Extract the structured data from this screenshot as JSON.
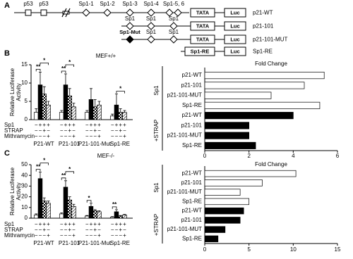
{
  "panel_labels": [
    "A",
    "B",
    "C"
  ],
  "diagram": {
    "constructs": [
      {
        "name": "p21-WT",
        "sites": [
          "p53",
          "p53",
          "Sp1-1",
          "Sp1-2",
          "Sp1-3",
          "Sp1-4",
          "Sp1-5, 6"
        ],
        "boxes": [
          "TATA",
          "Luc"
        ]
      },
      {
        "name": "p21-101",
        "sites": [
          "Sp1",
          "Sp1",
          "Sp1"
        ],
        "boxes": [
          "TATA",
          "Luc"
        ]
      },
      {
        "name": "p21-101-MUT",
        "sites": [
          "Sp1-Mut",
          "Sp1",
          "Sp1"
        ],
        "boxes": [
          "TATA",
          "Luc"
        ]
      },
      {
        "name": "Sp1-RE",
        "boxes": [
          "Sp1-RE",
          "Luc"
        ]
      }
    ]
  },
  "chart_data": [
    {
      "type": "grouped_bar",
      "subtitle": "MEF+/+",
      "ylabel": [
        "Relative Luciferase",
        "Activity"
      ],
      "categories": [
        "P21-WT",
        "P21-101",
        "P21-101-Mut",
        "Sp1-RE"
      ],
      "series": [
        {
          "color": "#ffffff",
          "pattern": "none",
          "values": [
            2,
            2,
            2,
            1
          ],
          "errors": [
            1,
            0.5,
            0.5,
            0.5
          ]
        },
        {
          "color": "#000000",
          "pattern": "none",
          "values": [
            9.5,
            9.5,
            5.5,
            4
          ],
          "errors": [
            3.5,
            3,
            3,
            3
          ]
        },
        {
          "color": "#000000",
          "pattern": "checker",
          "values": [
            7,
            6.5,
            3.5,
            2
          ],
          "errors": [
            2,
            2,
            2,
            1
          ]
        },
        {
          "color": "#000000",
          "pattern": "hatch",
          "values": [
            4,
            3.5,
            4,
            2
          ],
          "errors": [
            1,
            1,
            1,
            0.5
          ]
        }
      ],
      "treatments": [
        {
          "name": "Sp1",
          "signs": [
            "−",
            "+",
            "+",
            "+"
          ]
        },
        {
          "name": "STRAP",
          "signs": [
            "−",
            "−",
            "+",
            "−"
          ]
        },
        {
          "name": "Mithramycin",
          "signs": [
            "−",
            "−",
            "−",
            "+"
          ]
        }
      ],
      "significance": [
        {
          "text": "**",
          "group": 0,
          "bars": [
            0,
            1
          ]
        },
        {
          "text": "*",
          "group": 0,
          "bars": [
            1,
            3
          ]
        },
        {
          "text": "**",
          "group": 1,
          "bars": [
            0,
            1
          ]
        },
        {
          "text": "*",
          "group": 1,
          "bars": [
            1,
            3
          ]
        },
        {
          "text": "*",
          "group": 3,
          "bars": [
            1,
            3
          ]
        }
      ],
      "ylim": [
        0,
        15
      ],
      "yticks": [
        0,
        5,
        10,
        15
      ]
    },
    {
      "type": "hbar",
      "title": "Fold Change",
      "categories": [
        "p21-WT",
        "p21-101",
        "p21-101-MUT",
        "Sp1-RE",
        "p21-WT",
        "p21-101",
        "p21-101-MUT",
        "Sp1-RE"
      ],
      "values": [
        5.4,
        4.5,
        3,
        5.2,
        4,
        2,
        2,
        2.3
      ],
      "colors": [
        "#ffffff",
        "#ffffff",
        "#ffffff",
        "#ffffff",
        "#000000",
        "#000000",
        "#000000",
        "#000000"
      ],
      "group_labels": [
        {
          "text": "Sp1",
          "rows": [
            0,
            3
          ]
        },
        {
          "text": "+STRAP",
          "rows": [
            4,
            7
          ]
        }
      ],
      "xlim": [
        0,
        6
      ],
      "xticks": [
        0,
        2,
        4,
        6
      ]
    },
    {
      "type": "grouped_bar",
      "subtitle": "MEF-/-",
      "ylabel": [
        "Relative Luciferase",
        "Activity"
      ],
      "categories": [
        "P21-WT",
        "P21-101",
        "P21-101-Mut",
        "Sp1-RE"
      ],
      "series": [
        {
          "color": "#ffffff",
          "pattern": "none",
          "values": [
            3,
            4,
            2,
            1
          ],
          "errors": [
            1,
            1,
            0.5,
            0.5
          ]
        },
        {
          "color": "#000000",
          "pattern": "none",
          "values": [
            37,
            29,
            11,
            6
          ],
          "errors": [
            6,
            6,
            3,
            2
          ]
        },
        {
          "color": "#000000",
          "pattern": "checker",
          "values": [
            16,
            17,
            7,
            2
          ],
          "errors": [
            3,
            3,
            1,
            0.5
          ]
        },
        {
          "color": "#000000",
          "pattern": "hatch",
          "values": [
            14,
            11,
            6,
            3
          ],
          "errors": [
            2,
            2,
            1,
            0.5
          ]
        }
      ],
      "treatments": [
        {
          "name": "Sp1",
          "signs": [
            "−",
            "+",
            "+",
            "+"
          ]
        },
        {
          "name": "STRAP",
          "signs": [
            "−",
            "−",
            "+",
            "−"
          ]
        },
        {
          "name": "Mithramycin",
          "signs": [
            "−",
            "−",
            "−",
            "+"
          ]
        }
      ],
      "significance": [
        {
          "text": "**",
          "group": 0,
          "bars": [
            0,
            1
          ]
        },
        {
          "text": "*",
          "group": 0,
          "bars": [
            1,
            3
          ]
        },
        {
          "text": "**",
          "group": 1,
          "bars": [
            0,
            1
          ]
        },
        {
          "text": "*",
          "group": 1,
          "bars": [
            1,
            3
          ]
        },
        {
          "text": "*",
          "group": 2,
          "bars": [
            0,
            1
          ]
        },
        {
          "text": "**",
          "group": 3,
          "bars": [
            0,
            1
          ]
        }
      ],
      "ylim": [
        0,
        50
      ],
      "yticks": [
        0,
        10,
        20,
        30,
        40,
        50
      ]
    },
    {
      "type": "hbar",
      "title": "Fold Change",
      "categories": [
        "p21-WT",
        "p21-101",
        "p21-101-MUT",
        "Sp1-RE",
        "p21-WT",
        "p21-101",
        "p21-101-MUT",
        "Sp1-RE"
      ],
      "values": [
        10.3,
        6.5,
        4,
        5,
        4.4,
        4,
        2.3,
        1.5
      ],
      "colors": [
        "#ffffff",
        "#ffffff",
        "#ffffff",
        "#ffffff",
        "#000000",
        "#000000",
        "#000000",
        "#000000"
      ],
      "group_labels": [
        {
          "text": "Sp1",
          "rows": [
            0,
            3
          ]
        },
        {
          "text": "+STRAP",
          "rows": [
            4,
            7
          ]
        }
      ],
      "xlim": [
        0,
        15
      ],
      "xticks": [
        0,
        5,
        10,
        15
      ]
    }
  ]
}
